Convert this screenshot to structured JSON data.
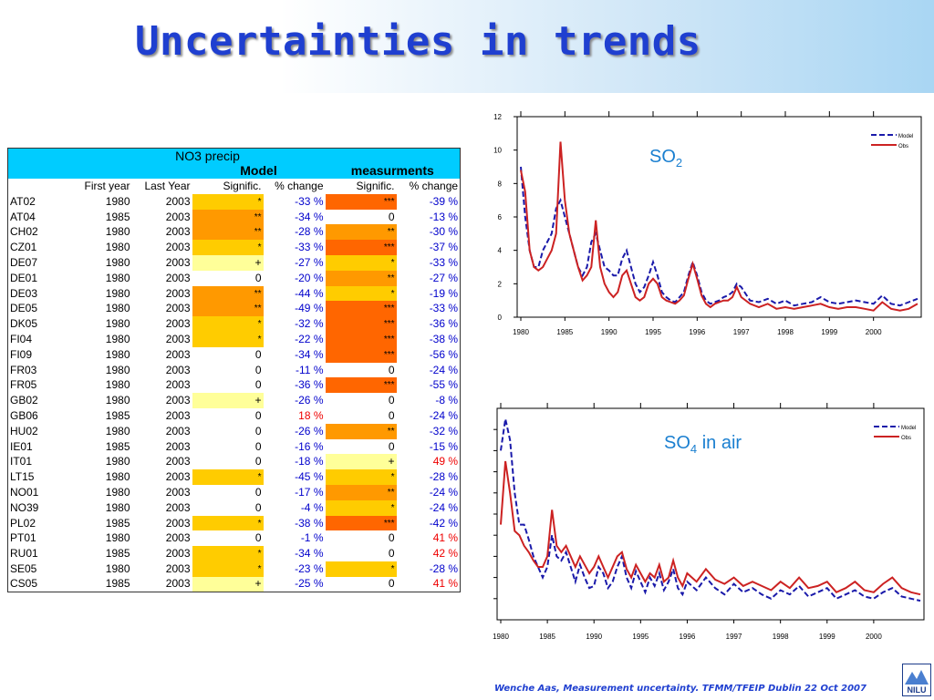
{
  "slide": {
    "title": "Uncertainties in trends",
    "footer": "Wenche Aas, Measurement uncertainty. TFMM/TFEIP Dublin 22 Oct 2007",
    "logo_text": "NILU"
  },
  "table": {
    "header_top": "NO3 precip",
    "header_model": "Model",
    "header_meas": "measurments",
    "columns": [
      "",
      "First year",
      "Last Year",
      "Signific.",
      "% change",
      "Signific.",
      "% change"
    ],
    "rows": [
      {
        "site": "AT02",
        "first": "1980",
        "last": "2003",
        "msig": "*",
        "mpct": "-33 %",
        "osig": "***",
        "opct": "-39 %"
      },
      {
        "site": "AT04",
        "first": "1985",
        "last": "2003",
        "msig": "**",
        "mpct": "-34 %",
        "osig": "0",
        "opct": "-13 %"
      },
      {
        "site": "CH02",
        "first": "1980",
        "last": "2003",
        "msig": "**",
        "mpct": "-28 %",
        "osig": "**",
        "opct": "-30 %"
      },
      {
        "site": "CZ01",
        "first": "1980",
        "last": "2003",
        "msig": "*",
        "mpct": "-33 %",
        "osig": "***",
        "opct": "-37 %"
      },
      {
        "site": "DE07",
        "first": "1980",
        "last": "2003",
        "msig": "+",
        "mpct": "-27 %",
        "osig": "*",
        "opct": "-33 %"
      },
      {
        "site": "DE01",
        "first": "1980",
        "last": "2003",
        "msig": "0",
        "mpct": "-20 %",
        "osig": "**",
        "opct": "-27 %"
      },
      {
        "site": "DE03",
        "first": "1980",
        "last": "2003",
        "msig": "**",
        "mpct": "-44 %",
        "osig": "*",
        "opct": "-19 %"
      },
      {
        "site": "DE05",
        "first": "1980",
        "last": "2003",
        "msig": "**",
        "mpct": "-49 %",
        "osig": "***",
        "opct": "-33 %"
      },
      {
        "site": "DK05",
        "first": "1980",
        "last": "2003",
        "msig": "*",
        "mpct": "-32 %",
        "osig": "***",
        "opct": "-36 %"
      },
      {
        "site": "FI04",
        "first": "1980",
        "last": "2003",
        "msig": "*",
        "mpct": "-22 %",
        "osig": "***",
        "opct": "-38 %"
      },
      {
        "site": "FI09",
        "first": "1980",
        "last": "2003",
        "msig": "0",
        "mpct": "-34 %",
        "osig": "***",
        "opct": "-56 %"
      },
      {
        "site": "FR03",
        "first": "1980",
        "last": "2003",
        "msig": "0",
        "mpct": "-11 %",
        "osig": "0",
        "opct": "-24 %"
      },
      {
        "site": "FR05",
        "first": "1980",
        "last": "2003",
        "msig": "0",
        "mpct": "-36 %",
        "osig": "***",
        "opct": "-55 %"
      },
      {
        "site": "GB02",
        "first": "1980",
        "last": "2003",
        "msig": "+",
        "mpct": "-26 %",
        "osig": "0",
        "opct": "-8 %"
      },
      {
        "site": "GB06",
        "first": "1985",
        "last": "2003",
        "msig": "0",
        "mpct": "18 %",
        "osig": "0",
        "opct": "-24 %"
      },
      {
        "site": "HU02",
        "first": "1980",
        "last": "2003",
        "msig": "0",
        "mpct": "-26 %",
        "osig": "**",
        "opct": "-32 %"
      },
      {
        "site": "IE01",
        "first": "1985",
        "last": "2003",
        "msig": "0",
        "mpct": "-16 %",
        "osig": "0",
        "opct": "-15 %"
      },
      {
        "site": "IT01",
        "first": "1980",
        "last": "2003",
        "msig": "0",
        "mpct": "-18 %",
        "osig": "+",
        "opct": "49 %"
      },
      {
        "site": "LT15",
        "first": "1980",
        "last": "2003",
        "msig": "*",
        "mpct": "-45 %",
        "osig": "*",
        "opct": "-28 %"
      },
      {
        "site": "NO01",
        "first": "1980",
        "last": "2003",
        "msig": "0",
        "mpct": "-17 %",
        "osig": "**",
        "opct": "-24 %"
      },
      {
        "site": "NO39",
        "first": "1980",
        "last": "2003",
        "msig": "0",
        "mpct": "-4 %",
        "osig": "*",
        "opct": "-24 %"
      },
      {
        "site": "PL02",
        "first": "1985",
        "last": "2003",
        "msig": "*",
        "mpct": "-38 %",
        "osig": "***",
        "opct": "-42 %"
      },
      {
        "site": "PT01",
        "first": "1980",
        "last": "2003",
        "msig": "0",
        "mpct": "-1 %",
        "osig": "0",
        "opct": "41 %"
      },
      {
        "site": "RU01",
        "first": "1985",
        "last": "2003",
        "msig": "*",
        "mpct": "-34 %",
        "osig": "0",
        "opct": "42 %"
      },
      {
        "site": "SE05",
        "first": "1980",
        "last": "2003",
        "msig": "*",
        "mpct": "-23 %",
        "osig": "*",
        "opct": "-28 %"
      },
      {
        "site": "CS05",
        "first": "1985",
        "last": "2003",
        "msig": "+",
        "mpct": "-25 %",
        "osig": "0",
        "opct": "41 %"
      }
    ]
  },
  "significance_colors": {
    "***": "#ff6600",
    "**": "#ff9900",
    "*": "#ffcc00",
    "+": "#ffff99",
    "0": "#ffffff"
  },
  "chart_data": [
    {
      "type": "line",
      "title": "SO2",
      "x_tick_labels": [
        "1980",
        "1985",
        "1990",
        "1995",
        "1996",
        "1997",
        "1998",
        "1999",
        "2000"
      ],
      "x_tick_pos": [
        0,
        1,
        2,
        3,
        4,
        5,
        6,
        7,
        8
      ],
      "ylim": [
        0,
        12
      ],
      "yticks": [
        0,
        2,
        4,
        6,
        8,
        10,
        12
      ],
      "legend": "top-right",
      "series": [
        {
          "name": "Model",
          "color": "#1a1aaa",
          "style": "dashed",
          "x": [
            0,
            0.1,
            0.2,
            0.3,
            0.4,
            0.5,
            0.6,
            0.7,
            0.8,
            0.9,
            1.0,
            1.1,
            1.2,
            1.3,
            1.4,
            1.5,
            1.6,
            1.7,
            1.8,
            1.9,
            2.0,
            2.1,
            2.2,
            2.3,
            2.4,
            2.5,
            2.6,
            2.7,
            2.8,
            2.9,
            3.0,
            3.1,
            3.2,
            3.3,
            3.4,
            3.5,
            3.6,
            3.7,
            3.8,
            3.9,
            4.0,
            4.1,
            4.2,
            4.3,
            4.4,
            4.5,
            4.6,
            4.7,
            4.8,
            4.9,
            5.0,
            5.2,
            5.4,
            5.6,
            5.8,
            6.0,
            6.2,
            6.4,
            6.6,
            6.8,
            7.0,
            7.2,
            7.4,
            7.6,
            7.8,
            8.0,
            8.2,
            8.4,
            8.6,
            8.8,
            9.0
          ],
          "y": [
            9,
            6,
            4,
            3,
            3,
            4,
            4.5,
            5,
            6.5,
            7,
            6,
            5,
            4,
            3,
            2.5,
            3,
            4.5,
            5,
            4,
            3,
            2.8,
            2.5,
            2.5,
            3.5,
            4,
            3,
            2,
            1.5,
            1.8,
            2.5,
            3.3,
            2.5,
            1.5,
            1.2,
            1,
            0.9,
            1.2,
            1.5,
            2.5,
            3.3,
            2.5,
            1.5,
            1,
            0.8,
            0.9,
            1,
            1.2,
            1.3,
            1.5,
            2,
            1.8,
            1,
            0.9,
            1.1,
            0.8,
            1,
            0.7,
            0.8,
            0.9,
            1.2,
            0.9,
            0.8,
            0.9,
            1,
            0.9,
            0.8,
            1.3,
            0.8,
            0.7,
            0.9,
            1.1
          ]
        },
        {
          "name": "Obs",
          "color": "#cc2222",
          "style": "solid",
          "x": [
            0,
            0.1,
            0.2,
            0.3,
            0.4,
            0.5,
            0.6,
            0.7,
            0.8,
            0.9,
            1.0,
            1.1,
            1.2,
            1.3,
            1.4,
            1.5,
            1.6,
            1.7,
            1.8,
            1.9,
            2.0,
            2.1,
            2.2,
            2.3,
            2.4,
            2.5,
            2.6,
            2.7,
            2.8,
            2.9,
            3.0,
            3.1,
            3.2,
            3.3,
            3.4,
            3.5,
            3.6,
            3.7,
            3.8,
            3.9,
            4.0,
            4.1,
            4.2,
            4.3,
            4.4,
            4.5,
            4.6,
            4.7,
            4.8,
            4.9,
            5.0,
            5.2,
            5.4,
            5.6,
            5.8,
            6.0,
            6.2,
            6.4,
            6.6,
            6.8,
            7.0,
            7.2,
            7.4,
            7.6,
            7.8,
            8.0,
            8.2,
            8.4,
            8.6,
            8.8,
            9.0
          ],
          "y": [
            8.8,
            7.5,
            4,
            3,
            2.8,
            3,
            3.5,
            4,
            5,
            10.5,
            7,
            5,
            4,
            3,
            2.2,
            2.5,
            3,
            5.8,
            3,
            2,
            1.5,
            1.2,
            1.5,
            2.5,
            2.8,
            2,
            1.2,
            1,
            1.2,
            2,
            2.3,
            2,
            1.2,
            1,
            0.9,
            0.8,
            1,
            1.3,
            2.3,
            3.2,
            2.3,
            1.3,
            0.8,
            0.6,
            0.8,
            0.9,
            1,
            1,
            1.2,
            1.8,
            1.2,
            0.8,
            0.6,
            0.8,
            0.5,
            0.6,
            0.5,
            0.6,
            0.7,
            0.8,
            0.6,
            0.5,
            0.6,
            0.6,
            0.5,
            0.4,
            0.9,
            0.5,
            0.4,
            0.5,
            0.8
          ]
        }
      ]
    },
    {
      "type": "line",
      "title": "SO4 in air",
      "x_tick_labels": [
        "1980",
        "1985",
        "1990",
        "1995",
        "1996",
        "1997",
        "1998",
        "1999",
        "2000"
      ],
      "x_tick_pos": [
        0,
        1,
        2,
        3,
        4,
        5,
        6,
        7,
        8
      ],
      "ylim": [
        0,
        10
      ],
      "legend": "top-right",
      "series": [
        {
          "name": "Model",
          "color": "#1a1aaa",
          "style": "dashed",
          "x": [
            0,
            0.1,
            0.2,
            0.3,
            0.4,
            0.5,
            0.6,
            0.7,
            0.8,
            0.9,
            1.0,
            1.1,
            1.2,
            1.3,
            1.4,
            1.5,
            1.6,
            1.7,
            1.8,
            1.9,
            2.0,
            2.1,
            2.2,
            2.3,
            2.4,
            2.5,
            2.6,
            2.7,
            2.8,
            2.9,
            3.0,
            3.1,
            3.2,
            3.3,
            3.4,
            3.5,
            3.6,
            3.7,
            3.8,
            3.9,
            4.0,
            4.2,
            4.4,
            4.6,
            4.8,
            5.0,
            5.2,
            5.4,
            5.6,
            5.8,
            6.0,
            6.2,
            6.4,
            6.6,
            6.8,
            7.0,
            7.2,
            7.4,
            7.6,
            7.8,
            8.0,
            8.2,
            8.4,
            8.6,
            8.8,
            9.0
          ],
          "y": [
            8,
            9.5,
            8.5,
            6,
            4.5,
            4.5,
            3.8,
            3,
            2.5,
            2,
            2.5,
            4,
            3,
            2.8,
            3.2,
            2.5,
            1.8,
            2.6,
            2,
            1.5,
            1.6,
            2.5,
            2.2,
            1.5,
            1.8,
            2.5,
            3,
            2,
            1.5,
            2.3,
            1.8,
            1.3,
            2,
            1.6,
            2.2,
            1.4,
            1.8,
            2.4,
            1.5,
            1.2,
            1.8,
            1.4,
            2,
            1.5,
            1.2,
            1.7,
            1.3,
            1.5,
            1.2,
            1,
            1.4,
            1.2,
            1.6,
            1.1,
            1.3,
            1.5,
            1,
            1.2,
            1.4,
            1.1,
            1,
            1.3,
            1.5,
            1.1,
            1,
            0.9
          ]
        },
        {
          "name": "Obs",
          "color": "#cc2222",
          "style": "solid",
          "x": [
            0,
            0.1,
            0.2,
            0.3,
            0.4,
            0.5,
            0.6,
            0.7,
            0.8,
            0.9,
            1.0,
            1.1,
            1.2,
            1.3,
            1.4,
            1.5,
            1.6,
            1.7,
            1.8,
            1.9,
            2.0,
            2.1,
            2.2,
            2.3,
            2.4,
            2.5,
            2.6,
            2.7,
            2.8,
            2.9,
            3.0,
            3.1,
            3.2,
            3.3,
            3.4,
            3.5,
            3.6,
            3.7,
            3.8,
            3.9,
            4.0,
            4.2,
            4.4,
            4.6,
            4.8,
            5.0,
            5.2,
            5.4,
            5.6,
            5.8,
            6.0,
            6.2,
            6.4,
            6.6,
            6.8,
            7.0,
            7.2,
            7.4,
            7.6,
            7.8,
            8.0,
            8.2,
            8.4,
            8.6,
            8.8,
            9.0
          ],
          "y": [
            4.5,
            7.5,
            6,
            4.2,
            4,
            3.5,
            3.2,
            2.8,
            2.5,
            2.5,
            3,
            5.2,
            3.5,
            3.2,
            3.5,
            3,
            2.5,
            3,
            2.6,
            2.2,
            2.5,
            3,
            2.5,
            2,
            2.5,
            3,
            3.2,
            2.4,
            2,
            2.6,
            2.2,
            1.8,
            2.2,
            2,
            2.6,
            1.8,
            2,
            2.8,
            2,
            1.6,
            2.2,
            1.8,
            2.4,
            1.9,
            1.7,
            2,
            1.6,
            1.8,
            1.6,
            1.4,
            1.8,
            1.5,
            2,
            1.5,
            1.6,
            1.8,
            1.3,
            1.5,
            1.8,
            1.4,
            1.3,
            1.7,
            2,
            1.5,
            1.3,
            1.2
          ]
        }
      ]
    }
  ]
}
